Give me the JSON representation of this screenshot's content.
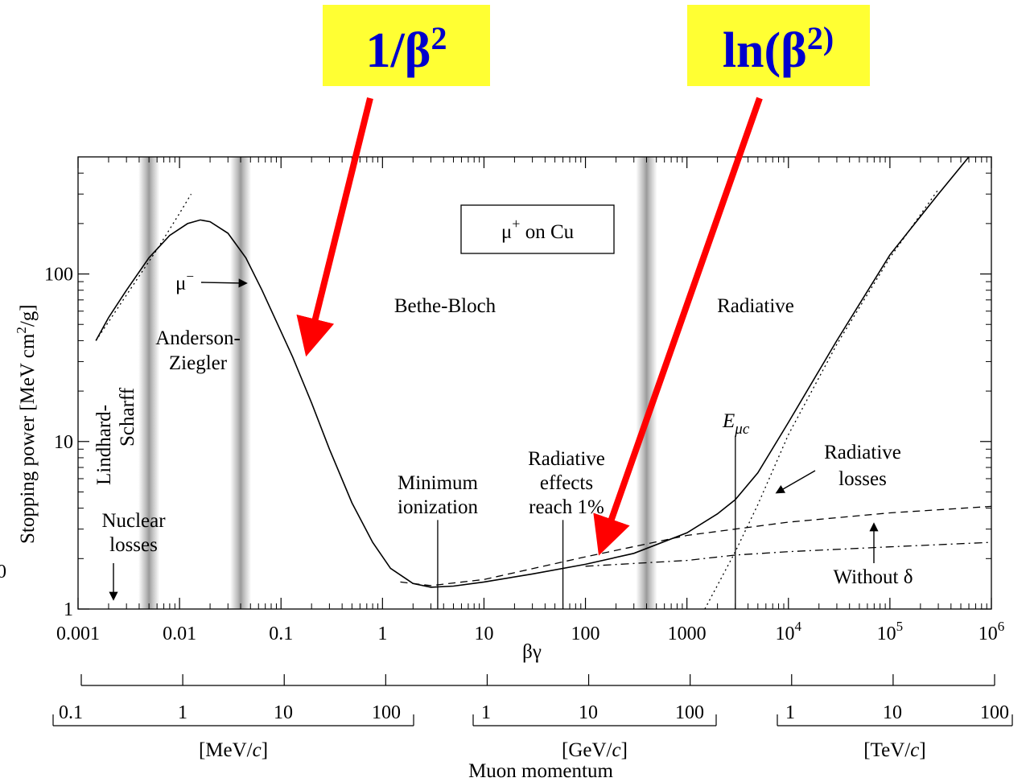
{
  "callouts": [
    {
      "text": "1/β",
      "sup": "2",
      "color": "#0000cc",
      "background": "#ffff33"
    },
    {
      "text": "ln(β",
      "sup": "2)",
      "color": "#0000cc",
      "background": "#ffff33"
    }
  ],
  "arrow_color": "#ff0000",
  "chart_data": {
    "type": "line",
    "title": "μ+ on Cu",
    "xlabel": "βγ",
    "ylabel": "Stopping power [MeV cm2/g]",
    "xscale": "log",
    "yscale": "log",
    "xlim": [
      0.001,
      1000000
    ],
    "ylim": [
      1,
      500
    ],
    "x_ticks": [
      {
        "label": "0.001",
        "sup": ""
      },
      {
        "label": "0.01",
        "sup": ""
      },
      {
        "label": "0.1",
        "sup": ""
      },
      {
        "label": "1",
        "sup": ""
      },
      {
        "label": "10",
        "sup": ""
      },
      {
        "label": "100",
        "sup": ""
      },
      {
        "label": "1000",
        "sup": ""
      },
      {
        "label": "10",
        "sup": "4"
      },
      {
        "label": "10",
        "sup": "5"
      },
      {
        "label": "10",
        "sup": "6"
      }
    ],
    "y_ticks": [
      "1",
      "10",
      "100"
    ],
    "stray_label": "0",
    "series": [
      {
        "style": "solid",
        "points": [
          [
            0.0015,
            40
          ],
          [
            0.002,
            55
          ],
          [
            0.003,
            80
          ],
          [
            0.005,
            125
          ],
          [
            0.008,
            170
          ],
          [
            0.012,
            200
          ],
          [
            0.016,
            210
          ],
          [
            0.02,
            205
          ],
          [
            0.03,
            175
          ],
          [
            0.045,
            125
          ],
          [
            0.065,
            80
          ],
          [
            0.09,
            52
          ],
          [
            0.13,
            32
          ],
          [
            0.2,
            17
          ],
          [
            0.3,
            9
          ],
          [
            0.5,
            4.3
          ],
          [
            0.8,
            2.5
          ],
          [
            1.2,
            1.75
          ],
          [
            2,
            1.42
          ],
          [
            3,
            1.35
          ],
          [
            5,
            1.37
          ],
          [
            10,
            1.45
          ],
          [
            30,
            1.62
          ],
          [
            100,
            1.85
          ],
          [
            300,
            2.15
          ],
          [
            1000,
            2.85
          ],
          [
            2000,
            3.7
          ],
          [
            3000,
            4.5
          ],
          [
            5000,
            6.5
          ],
          [
            10000,
            13
          ],
          [
            30000,
            40
          ],
          [
            100000,
            130
          ],
          [
            300000,
            300
          ],
          [
            600000,
            500
          ]
        ]
      },
      {
        "style": "dotted",
        "points": [
          [
            0.0015,
            40
          ],
          [
            0.003,
            75
          ],
          [
            0.006,
            140
          ],
          [
            0.01,
            230
          ],
          [
            0.013,
            300
          ]
        ]
      },
      {
        "style": "dashed",
        "points": [
          [
            1.5,
            1.45
          ],
          [
            3,
            1.38
          ],
          [
            10,
            1.5
          ],
          [
            100,
            2.05
          ],
          [
            1000,
            2.75
          ],
          [
            10000,
            3.3
          ],
          [
            100000,
            3.75
          ],
          [
            1000000,
            4.1
          ]
        ]
      },
      {
        "style": "dashdot",
        "points": [
          [
            100,
            1.8
          ],
          [
            1000,
            1.95
          ],
          [
            3000,
            2.1
          ],
          [
            10000,
            2.2
          ],
          [
            100000,
            2.35
          ],
          [
            1000000,
            2.5
          ]
        ]
      },
      {
        "style": "dotted",
        "points": [
          [
            1500,
            1
          ],
          [
            3000,
            2.2
          ],
          [
            5000,
            4.2
          ],
          [
            10000,
            11
          ],
          [
            30000,
            38
          ],
          [
            100000,
            125
          ],
          [
            300000,
            320
          ]
        ]
      }
    ],
    "bands_betagamma": [
      0.005,
      0.04,
      400
    ],
    "vertical_lines": [
      {
        "x": 3.5,
        "ytop": 3.4
      },
      {
        "x": 60,
        "ytop": 3.4
      },
      {
        "x": 3000,
        "ytop": 10.8
      }
    ],
    "annotations": {
      "mu_minus": "μ",
      "mu_minus_sup": "−",
      "lindhard": [
        "Lindhard-",
        "Scharff"
      ],
      "anderson": [
        "Anderson-",
        "Ziegler"
      ],
      "bethe": "Bethe-Bloch",
      "radiative": "Radiative",
      "nuclear": [
        "Nuclear",
        "losses"
      ],
      "minimum": [
        "Minimum",
        "ionization"
      ],
      "radeff": [
        "Radiative",
        "effects",
        "reach 1%"
      ],
      "emuc": "E",
      "emuc_sub": "μc",
      "radlosses": [
        "Radiative",
        "losses"
      ],
      "without": "Without δ"
    },
    "momentum_axis": {
      "title": "Muon momentum",
      "groups": [
        {
          "unit": "[MeV/c]",
          "ticks": [
            "0.1",
            "1",
            "10",
            "100"
          ]
        },
        {
          "unit": "[GeV/c]",
          "ticks": [
            "1",
            "10",
            "100"
          ]
        },
        {
          "unit": "[TeV/c]",
          "ticks": [
            "1",
            "10",
            "100"
          ]
        }
      ]
    }
  }
}
